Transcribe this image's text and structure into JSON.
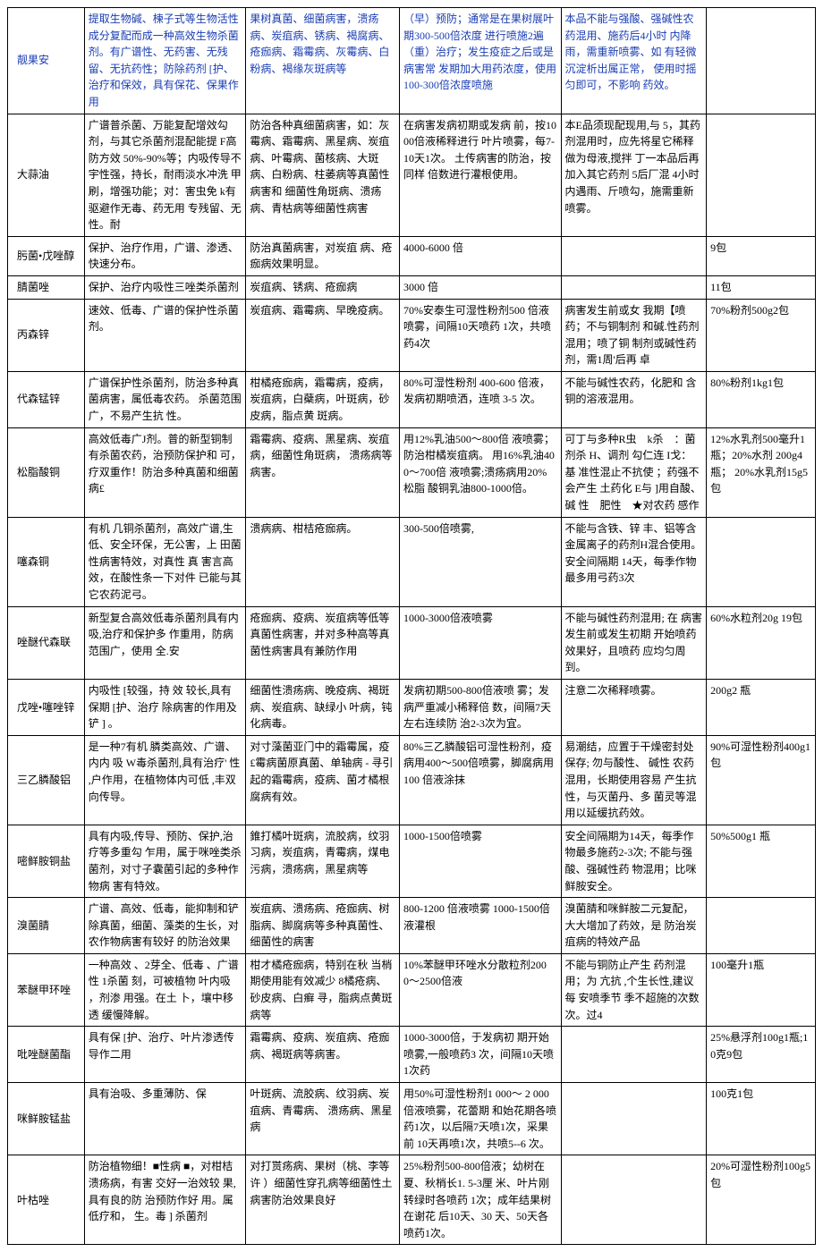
{
  "rows": [
    {
      "name": {
        "text": "靓果安",
        "blue": true
      },
      "col1": {
        "text": "提取生物碱、楝子式等生物活性成分复配而成一种高效生物杀菌剂。有广谱性、无药害、无残留、无抗药性；防除药剂 [护、治疗和保效，具有保花、保果作用",
        "blue": true
      },
      "col2": {
        "text": "果树真菌、细菌病害，溃疡病、炭疽病、锈病、褐腐病、疮痂病、霜霉病、灰霉病、白粉病、褐缘灰斑病等",
        "blue": true
      },
      "col3": {
        "text": "（早）预防；通常是在果树展叶期300-500倍浓度 进行喷施2遍（重）治疗；发生疫症之后或是病害常 发期加大用药浓度，使用 100-300倍浓度喷施",
        "blue": true
      },
      "col4": {
        "text": "本品不能与强酸、强碱性农药混用、施药后4小时 内降雨，需重新喷雾、如 有轻微沉淀析出属正常， 使用时摇匀即可，不影响 药效。",
        "blue": true
      },
      "col5": {
        "text": "",
        "blue": true
      }
    },
    {
      "name": {
        "text": "大蒜油",
        "blue": false
      },
      "col1": {
        "text": "广谱普杀菌、万能复配增效勾剂，与其它杀菌剂混配能提 F高防方效 50%-90%等；内吸传导不宇性强，持长，耐雨淡水冲洗 甲刷，增强功能；对：害虫免 k有驱避作无毒、药无用 专残留、无性。耐",
        "blue": false
      },
      "col2": {
        "text": "防治各种真细菌病害，如：灰霉病、霜霉病、黑星病、炭疽病、叶霉病、菌核病、大斑病、白粉病、柱萎病等真菌性病害和 细菌性角斑病、溃疡病、青枯病等细菌性病害",
        "blue": false
      },
      "col3": {
        "text": "在病害发病初期或发病 前，按1000倍液稀释进行 叶片喷雾，每7-10天1次。 土传病害的防治，按同样 倍数进行灌根使用。",
        "blue": false
      },
      "col4": {
        "text": "本E品须现配现用,与 5，其药剂混用时，应先将星它稀释做为母液,搅拌 丁一本品后再加入其它药剂 5后厂混 4小时内遇雨、斤喷勾，施需重新喷雾。",
        "blue": false
      },
      "col5": {
        "text": "",
        "blue": false
      }
    },
    {
      "name": {
        "text": "肟菌•戊唑醇",
        "blue": false
      },
      "col1": {
        "text": "保护、治疗作用，广谱、渗透、快速分布。",
        "blue": false
      },
      "col2": {
        "text": "防治真菌病害，对炭疽 病、疮痂病效果明显。",
        "blue": false
      },
      "col3": {
        "text": "4000-6000 倍",
        "blue": false
      },
      "col4": {
        "text": "",
        "blue": false
      },
      "col5": {
        "text": "9包",
        "blue": false
      }
    },
    {
      "name": {
        "text": "腈菌唑",
        "blue": false
      },
      "col1": {
        "text": "保护、治疗内吸性三唑类杀菌剂",
        "blue": false
      },
      "col2": {
        "text": "炭疽病、锈病、疮痂病",
        "blue": false
      },
      "col3": {
        "text": "3000 倍",
        "blue": false
      },
      "col4": {
        "text": "",
        "blue": false
      },
      "col5": {
        "text": "11包",
        "blue": false
      }
    },
    {
      "name": {
        "text": "丙森锌",
        "blue": false
      },
      "col1": {
        "text": "速效、低毒、广谱的保护性杀菌剂。",
        "blue": false
      },
      "col2": {
        "text": "炭疽病、霜霉病、早晚疫病。",
        "blue": false
      },
      "col3": {
        "text": "70%安泰生可湿性粉剂500 倍液喷雾，间隔10天喷药 1次，共喷药4次",
        "blue": false
      },
      "col4": {
        "text": "病害发生前或女 我期【喷药；不与铜制剂 和碱.性药剂混用；喷了铜 制剂或碱性药剂，需1周'后再 卓",
        "blue": false
      },
      "col5": {
        "text": "70%粉剂500g2包",
        "blue": false
      }
    },
    {
      "name": {
        "text": "代森锰锌",
        "blue": false
      },
      "col1": {
        "text": "广谱保护性杀菌剂，防治多种真菌病害，属低毒农药。 杀菌范围广，不易产生抗 性。",
        "blue": false
      },
      "col2": {
        "text": "柑橘疮痂病，霜霉病，疫病，炭疽病，白蘗病，叶斑病，砂皮病，脂点黄 斑病。",
        "blue": false
      },
      "col3": {
        "text": "80%可湿性粉剂 400-600 倍液，发病初期喷洒，连喷 3-5 次。",
        "blue": false
      },
      "col4": {
        "text": "不能与碱性农药，化肥和 含铜的溶液混用。",
        "blue": false
      },
      "col5": {
        "text": "80%粉剂1kg1包",
        "blue": false
      }
    },
    {
      "name": {
        "text": "松脂酸铜",
        "blue": false
      },
      "col1": {
        "text": "高效低毒广J剂。普的新型铜制有杀菌农药，治预防保护和 可，疗双重作！防治多种真菌和细菌病£",
        "blue": false
      },
      "col2": {
        "text": "霜霉病、疫病、黑星病、炭疽病，细菌性角斑病， 溃疡病等病害。",
        "blue": false
      },
      "col3": {
        "text": "用12%乳油500〜800倍 液喷雾；防治柑橘炭疽病。 用16%乳油400〜700倍 液喷雾;溃疡病用20%松脂 酸铜乳油800-1000倍。",
        "blue": false
      },
      "col4": {
        "text": "可丁与多种R虫　k杀　：菌剂杀 H、调剂 勾仁连 I戈：基 准性混止不抗使 ；药强不会产生 土药化 E与 ]用自酸、碱 性　肥性　★对农药 感作",
        "blue": false
      },
      "col5": {
        "text": "12%水乳剂500毫升1瓶；20%水剂 200g4 瓶； 20%水乳剂15g5包",
        "blue": false
      }
    },
    {
      "name": {
        "text": "噻森铜",
        "blue": false
      },
      "col1": {
        "text": "有机 几铜杀菌剂，高效广谱,生低、安全环保，无公害，上 田菌性病害特效，对真性   真 害言高效，在酸性条一下对件 已能与其它农药泥弓。",
        "blue": false
      },
      "col2": {
        "text": "溃病病、柑桔疮痂病。",
        "blue": false
      },
      "col3": {
        "text": "300-500倍喷雾,",
        "blue": false
      },
      "col4": {
        "text": "不能与含铁、锌 丰、铝等含金属离子的药剂H混合使用。安全间隔期 14天，每季作物最多用弓药3次",
        "blue": false
      },
      "col5": {
        "text": "",
        "blue": false
      }
    },
    {
      "name": {
        "text": "唑醚代森联",
        "blue": false
      },
      "col1": {
        "text": "新型复合高效低毒杀菌剂具有内吸,治疗和保护多 作重用，防病范围广，使用 全.安",
        "blue": false
      },
      "col2": {
        "text": "疮痂病、疫病、炭疽病等低等真菌性病害，并对多种高等真菌性病害具有兼防作用",
        "blue": false
      },
      "col3": {
        "text": "1000-3000倍液喷雾",
        "blue": false
      },
      "col4": {
        "text": "不能与碱性药剂混用; 在 病害发生前或发生初期 开始喷药效果好，且喷药 应均匀周到。",
        "blue": false
      },
      "col5": {
        "text": "60%水粒剂20g 19包",
        "blue": false
      }
    },
    {
      "name": {
        "text": "戊唑•噻唑锌",
        "blue": false
      },
      "col1": {
        "text": "内吸性 [较强，持  效  较长,具有保期 [护、治疗 除病害的作用及铲 ] 。",
        "blue": false
      },
      "col2": {
        "text": "细菌性溃疡病、晚疫病、褐斑病、炭疽病、缺绿小 叶病，钝化病毒。",
        "blue": false
      },
      "col3": {
        "text": "发病初期500-800倍液喷 雾；发病严重减小稀释倍 数，间隔7天左右连续防 治2-3次为宜。",
        "blue": false
      },
      "col4": {
        "text": "注意二次稀释喷雾。",
        "blue": false
      },
      "col5": {
        "text": "200g2 瓶",
        "blue": false
      }
    },
    {
      "name": {
        "text": "三乙膦酸铝",
        "blue": false
      },
      "col1": {
        "text": "是一种7有机 膦类高效、广谱、内内 吸 W毒杀菌剂,具有治疗' 性 ,户作用，在植物体内可低 ,丰双向传导。",
        "blue": false
      },
      "col2": {
        "text": "对寸藻菌亚门中的霜霉属，疫£霉病菌原真菌、单轴病 - 寻引起的霜霉病，疫病、菌才橘根腐病有效。",
        "blue": false
      },
      "col3": {
        "text": "80%三乙膦酸铝可湿性粉剂，疫病用400〜500倍喷雾，脚腐病用100 倍液涂抹",
        "blue": false
      },
      "col4": {
        "text": "易潮结，应置于干燥密封处保存; 勿与酸性、 碱性 农药混用，长期使用容易 产生抗性，与灭菌丹、多 菌灵等混用以延缓抗药效。",
        "blue": false
      },
      "col5": {
        "text": "90%可湿性粉剂400g1 包",
        "blue": false
      }
    },
    {
      "name": {
        "text": "嘧鲜胺铜盐",
        "blue": false
      },
      "col1": {
        "text": "具有内吸,传导、预防、保护,治疗等多重勾 乍用，属于咪唑类杀菌剂，对寸子囊菌引起的多种作物病 害有特效。",
        "blue": false
      },
      "col2": {
        "text": "錐打橘叶斑病，流胶病，纹羽习病，炭疽病，青霉病，煤电污病，溃疡病，黑星病等",
        "blue": false
      },
      "col3": {
        "text": "1000-1500倍喷雾",
        "blue": false
      },
      "col4": {
        "text": "安全间隔期为14天，每季作物最多施药2-3次; 不能与强酸、强碱性药 物混用；比咪鲜胺安全。",
        "blue": false
      },
      "col5": {
        "text": "50%500g1 瓶",
        "blue": false
      }
    },
    {
      "name": {
        "text": "溴菌腈",
        "blue": false
      },
      "col1": {
        "text": "广谱、高效、低毒，能抑制和铲除真菌，细菌、藻类的生长，对农作物病害有较好 的防治效果",
        "blue": false
      },
      "col2": {
        "text": "炭疽病、溃疡病、疮痂病、树脂病、脚腐病等多种真菌性、细菌性的病害",
        "blue": false
      },
      "col3": {
        "text": "800-1200 倍液喷雾 1000-1500倍液灌根",
        "blue": false
      },
      "col4": {
        "text": "溴菌腈和咪鲜胺二元复配，大大增加了药效，是 防治炭疽病的特效产品",
        "blue": false
      },
      "col5": {
        "text": "",
        "blue": false
      }
    },
    {
      "name": {
        "text": "苯醚甲环唑",
        "blue": false
      },
      "col1": {
        "text": "一种高效 、2芽全、低毒 、广谱性  1杀菌 刻，可被植物 叶内吸 ，剂渗 用强。在土 卜，壤中移 透 缓慢降解。",
        "blue": false
      },
      "col2": {
        "text": "柑才橘疮痂病，特别在秋 当梢期使用能有效减少 8橘疮病、砂皮病、白癣 寻，脂病点黄斑病等",
        "blue": false
      },
      "col3": {
        "text": "10%苯醚甲环唑水分散粒剂2000〜2500倍液",
        "blue": false
      },
      "col4": {
        "text": "不能与铜防止产生  药剂混用；为 亢抗  ,个生长性,建议每 安喷季节 季不超施的次数 次。过4",
        "blue": false
      },
      "col5": {
        "text": "100毫升1瓶",
        "blue": false
      }
    },
    {
      "name": {
        "text": "吡唑醚菌酯",
        "blue": false
      },
      "col1": {
        "text": "具有保 [护、治疗、叶片渗透传导作二用",
        "blue": false
      },
      "col2": {
        "text": "霜霉病、疫病、炭疽病、疮痂病、褐斑病等病害。",
        "blue": false
      },
      "col3": {
        "text": "1000-3000倍，于发病初 期开始喷雾,一般喷药3 次，间隔10天喷1次药",
        "blue": false
      },
      "col4": {
        "text": "",
        "blue": false
      },
      "col5": {
        "text": "25%悬浮剂100g1瓶;10克9包",
        "blue": false
      }
    },
    {
      "name": {
        "text": "咪鲜胺锰盐",
        "blue": false
      },
      "col1": {
        "text": "具有治吸、多重薄防、保",
        "blue": false
      },
      "col2": {
        "text": "叶斑病、流胶病、纹羽病、炭疽病、青霉病、 溃疡病、黑星病",
        "blue": false
      },
      "col3": {
        "text": "用50%可湿性粉剂1 000〜 2 000倍液喷雾，花蕾期 和始花期各喷药1次，以后隔7天喷1次，采果前 10天再喷1次，共喷5--6 次。",
        "blue": false
      },
      "col4": {
        "text": "",
        "blue": false
      },
      "col5": {
        "text": "100克1包",
        "blue": false
      }
    },
    {
      "name": {
        "text": "叶枯唑",
        "blue": false
      },
      "col1": {
        "text": "防治植物细！■性病 ■，对柑桔溃疡病，有害 交好一治效较 果,具有良的防 治预防作好 用。属低疗和， 生。毒 ] 杀菌剂",
        "blue": false
      },
      "col2": {
        "text": "对打贳疡病、果树（桃、李等许 ）细菌性穿孔病等细菌性土病害防治效果良好",
        "blue": false
      },
      "col3": {
        "text": "25%粉剂500-800倍液；幼树在夏、秋梢长1. 5-3厘 米、叶片刚转绿时各喷药 1次；成年结果树在谢花 后10天、30 天、50天各 喷药1次。",
        "blue": false
      },
      "col4": {
        "text": "",
        "blue": false
      },
      "col5": {
        "text": "20%可湿性粉剂100g5 包",
        "blue": false
      }
    }
  ]
}
